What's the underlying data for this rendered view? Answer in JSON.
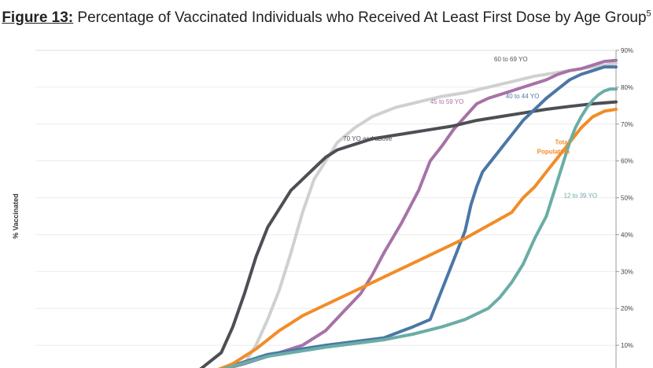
{
  "title": {
    "label": "Figure 13:",
    "text": " Percentage of Vaccinated Individuals who Received At Least First Dose by Age Group",
    "superscript": "5"
  },
  "chart_data": {
    "type": "line",
    "ylabel": "% Vaccinated",
    "ylim": [
      0,
      90
    ],
    "yticks": [
      10,
      20,
      30,
      40,
      50,
      60,
      70,
      80,
      90
    ],
    "ytick_labels": [
      "10%",
      "20%",
      "30%",
      "40%",
      "50%",
      "60%",
      "70%",
      "80%",
      "90%"
    ],
    "xlim": [
      0,
      100
    ],
    "grid": "horizontal",
    "series": [
      {
        "name": "60 to 69 YO",
        "color": "#d0d0d0",
        "x": [
          20,
          30,
          36,
          38,
          40,
          42,
          44,
          46,
          48,
          50,
          52,
          55,
          58,
          62,
          66,
          70,
          74,
          78,
          82,
          86,
          90,
          94,
          98,
          100
        ],
        "y": [
          0.8,
          2.5,
          5,
          10,
          17,
          25,
          35,
          46,
          55,
          60,
          65,
          69,
          72,
          74.5,
          76,
          77.5,
          78.5,
          80,
          81.5,
          83,
          84,
          85,
          86,
          86.5
        ]
      },
      {
        "name": "45 to 59 YO",
        "color": "#a673a6",
        "x": [
          20,
          30,
          36,
          42,
          46,
          50,
          53,
          56,
          58,
          60,
          63,
          66,
          68,
          70,
          72,
          74,
          76,
          78,
          80,
          82,
          84,
          86,
          88,
          90,
          92,
          94,
          96,
          98,
          100
        ],
        "y": [
          0.8,
          2.5,
          5,
          8,
          10,
          14,
          19,
          24,
          29,
          35,
          43,
          52,
          60,
          64,
          68.5,
          72,
          75.5,
          77,
          78,
          79,
          80,
          81,
          82,
          83.5,
          84.5,
          85,
          86,
          87,
          87.3
        ]
      },
      {
        "name": "70 YO and above",
        "color": "#4d4f54",
        "x": [
          20,
          28,
          32,
          34,
          36,
          38,
          40,
          42,
          44,
          46,
          48,
          50,
          52,
          54,
          56,
          58,
          60,
          64,
          68,
          72,
          76,
          80,
          84,
          88,
          92,
          96,
          100
        ],
        "y": [
          0.8,
          3,
          8,
          15,
          24,
          34,
          42,
          47,
          52,
          55,
          58,
          61,
          63,
          64,
          65,
          66,
          66.5,
          67.5,
          68.5,
          69.5,
          71,
          72,
          73,
          74,
          74.8,
          75.5,
          76
        ]
      },
      {
        "name": "40 to 44 YO",
        "color": "#4a77a6",
        "x": [
          20,
          30,
          40,
          50,
          60,
          65,
          68,
          70,
          72,
          74,
          75,
          76,
          77,
          78,
          80,
          82,
          84,
          86,
          88,
          90,
          92,
          94,
          96,
          98,
          100
        ],
        "y": [
          0.8,
          2.5,
          7.5,
          10,
          12,
          15,
          17,
          25,
          33,
          41,
          48,
          53,
          57,
          59,
          63,
          67,
          71,
          74,
          77,
          79.5,
          82,
          83.5,
          84.5,
          85.5,
          85.5
        ]
      },
      {
        "name": "Total Population",
        "color": "#f28c28",
        "x": [
          20,
          26,
          30,
          34,
          38,
          42,
          46,
          50,
          54,
          58,
          62,
          66,
          70,
          74,
          78,
          82,
          84,
          86,
          88,
          90,
          92,
          94,
          96,
          98,
          100
        ],
        "y": [
          0.8,
          1.5,
          2.5,
          5,
          9,
          14,
          18,
          21,
          24,
          27,
          30,
          33,
          36,
          39,
          42.5,
          46,
          50,
          53,
          57,
          61,
          65,
          69,
          72,
          73.5,
          74
        ]
      },
      {
        "name": "12 to 39 YO",
        "color": "#6aada6",
        "x": [
          20,
          30,
          40,
          50,
          60,
          65,
          70,
          74,
          78,
          80,
          82,
          84,
          86,
          88,
          89,
          90,
          91,
          92,
          93,
          94,
          95,
          96,
          97,
          98,
          99,
          100
        ],
        "y": [
          0.8,
          2.5,
          7,
          9.5,
          11.5,
          13,
          15,
          17,
          20,
          23,
          27,
          32,
          39,
          45,
          50,
          55,
          60,
          65,
          69,
          72,
          74.5,
          76.5,
          78,
          79,
          79.5,
          79.5
        ]
      }
    ],
    "annotations": [
      {
        "text": "60 to 69 YO",
        "color": "#555555",
        "x": 79,
        "y": 87,
        "anchor": "start"
      },
      {
        "text": "45 to 59 YO",
        "color": "#a673a6",
        "x": 68,
        "y": 75.5,
        "anchor": "start"
      },
      {
        "text": "70 YO and above",
        "color": "#4d4f54",
        "x": 53,
        "y": 65.5,
        "anchor": "start"
      },
      {
        "text": "40 to 44 YO",
        "color": "#4a77a6",
        "x": 81,
        "y": 77,
        "anchor": "start"
      },
      {
        "text": "Total",
        "color": "#f28c28",
        "x": 92,
        "y": 64.5,
        "anchor": "end"
      },
      {
        "text": "Population",
        "color": "#f28c28",
        "x": 92,
        "y": 62,
        "anchor": "end"
      },
      {
        "text": "12 to 39 YO",
        "color": "#6aada6",
        "x": 91,
        "y": 50,
        "anchor": "start"
      }
    ]
  }
}
